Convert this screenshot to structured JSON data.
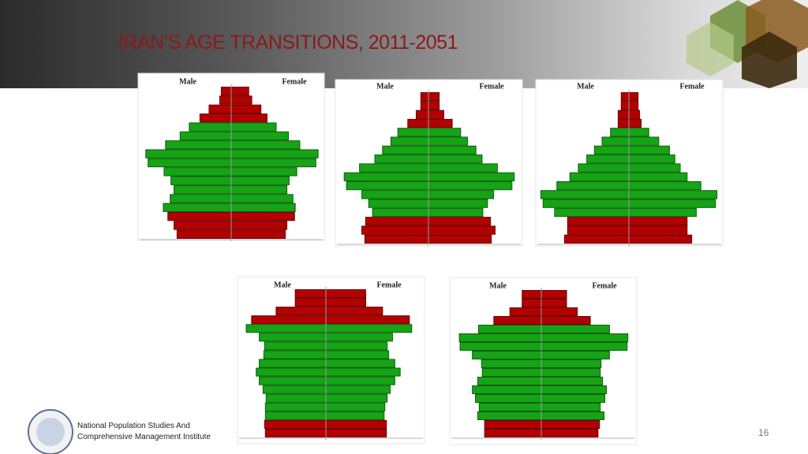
{
  "title": "IRAN’S AGE TRANSITIONS, 2011-2051",
  "footer": {
    "institute_line_1": "National Population Studies And",
    "institute_line_2": "Comprehensive Management Institute",
    "page_number": "16"
  },
  "chart_data": [
    {
      "type": "pyramid",
      "xlim": [
        0,
        120
      ],
      "categories": [
        null,
        null,
        null,
        null,
        null,
        null,
        null,
        null,
        null,
        null,
        null,
        null,
        null,
        null,
        null,
        null,
        null
      ],
      "colors": [
        "#b30000",
        "#b30000",
        "#b30000",
        "#b30000",
        "#16a316",
        "#16a316",
        "#16a316",
        "#16a316",
        "#16a316",
        "#16a316",
        "#16a316",
        "#16a316",
        "#16a316",
        "#16a316",
        "#b30000",
        "#b30000",
        "#b30000"
      ],
      "series": [
        {
          "name": "Male",
          "values": [
            13,
            15,
            29,
            41,
            55,
            67,
            86,
            112,
            109,
            88,
            79,
            75,
            80,
            89,
            83,
            75,
            71
          ]
        },
        {
          "name": "Female",
          "values": [
            23,
            27,
            39,
            47,
            59,
            75,
            90,
            114,
            111,
            86,
            76,
            73,
            81,
            84,
            83,
            73,
            71
          ]
        }
      ]
    },
    {
      "type": "pyramid",
      "xlim": [
        0,
        120
      ],
      "categories": [
        null,
        null,
        null,
        null,
        null,
        null,
        null,
        null,
        null,
        null,
        null,
        null,
        null,
        null,
        null,
        null,
        null
      ],
      "colors": [
        "#b30000",
        "#b30000",
        "#b30000",
        "#b30000",
        "#16a316",
        "#16a316",
        "#16a316",
        "#16a316",
        "#16a316",
        "#16a316",
        "#16a316",
        "#16a316",
        "#16a316",
        "#16a316",
        "#b30000",
        "#b30000",
        "#b30000"
      ],
      "series": [
        {
          "name": "Male",
          "values": [
            10,
            10,
            16,
            27,
            40,
            49,
            60,
            70,
            90,
            110,
            107,
            87,
            78,
            73,
            82,
            87,
            83
          ]
        },
        {
          "name": "Female",
          "values": [
            14,
            14,
            20,
            31,
            42,
            51,
            62,
            70,
            90,
            112,
            109,
            85,
            77,
            71,
            81,
            87,
            82
          ]
        }
      ]
    },
    {
      "type": "pyramid",
      "xlim": [
        0,
        120
      ],
      "categories": [
        null,
        null,
        null,
        null,
        null,
        null,
        null,
        null,
        null,
        null,
        null,
        null,
        null,
        null,
        null,
        null,
        null
      ],
      "colors": [
        "#b30000",
        "#b30000",
        "#b30000",
        "#b30000",
        "#16a316",
        "#16a316",
        "#16a316",
        "#16a316",
        "#16a316",
        "#16a316",
        "#16a316",
        "#16a316",
        "#16a316",
        "#16a316",
        "#b30000",
        "#b30000",
        "#b30000"
      ],
      "series": [
        {
          "name": "Male",
          "values": [
            10,
            10,
            14,
            14,
            24,
            35,
            45,
            55,
            66,
            77,
            94,
            115,
            112,
            97,
            80,
            80,
            84
          ]
        },
        {
          "name": "Female",
          "values": [
            12,
            12,
            14,
            16,
            26,
            39,
            53,
            60,
            67,
            76,
            94,
            115,
            113,
            88,
            76,
            76,
            82
          ]
        }
      ]
    },
    {
      "type": "pyramid",
      "xlim": [
        0,
        120
      ],
      "categories": [
        null,
        null,
        null,
        null,
        null,
        null,
        null,
        null,
        null,
        null,
        null,
        null,
        null,
        null,
        null,
        null,
        null
      ],
      "colors": [
        "#b30000",
        "#b30000",
        "#b30000",
        "#b30000",
        "#16a316",
        "#16a316",
        "#16a316",
        "#16a316",
        "#16a316",
        "#16a316",
        "#16a316",
        "#16a316",
        "#16a316",
        "#16a316",
        "#16a316",
        "#b30000",
        "#b30000"
      ],
      "series": [
        {
          "name": "Male",
          "values": [
            40,
            40,
            65,
            97,
            104,
            87,
            80,
            81,
            87,
            91,
            87,
            82,
            78,
            79,
            79,
            80,
            79
          ]
        },
        {
          "name": "Female",
          "values": [
            52,
            52,
            74,
            109,
            112,
            87,
            80,
            82,
            90,
            97,
            90,
            84,
            80,
            77,
            76,
            79,
            79
          ]
        }
      ]
    },
    {
      "type": "pyramid",
      "xlim": [
        0,
        120
      ],
      "categories": [
        null,
        null,
        null,
        null,
        null,
        null,
        null,
        null,
        null,
        null,
        null,
        null,
        null,
        null,
        null,
        null,
        null
      ],
      "colors": [
        "#b30000",
        "#b30000",
        "#b30000",
        "#b30000",
        "#16a316",
        "#16a316",
        "#16a316",
        "#16a316",
        "#16a316",
        "#16a316",
        "#16a316",
        "#16a316",
        "#16a316",
        "#16a316",
        "#16a316",
        "#b30000",
        "#b30000"
      ],
      "series": [
        {
          "name": "Male",
          "values": [
            25,
            25,
            41,
            62,
            82,
            107,
            106,
            90,
            78,
            77,
            83,
            90,
            86,
            81,
            83,
            74,
            74
          ]
        },
        {
          "name": "Female",
          "values": [
            33,
            33,
            47,
            64,
            89,
            113,
            112,
            89,
            78,
            77,
            80,
            85,
            83,
            77,
            82,
            76,
            74
          ]
        }
      ]
    }
  ]
}
